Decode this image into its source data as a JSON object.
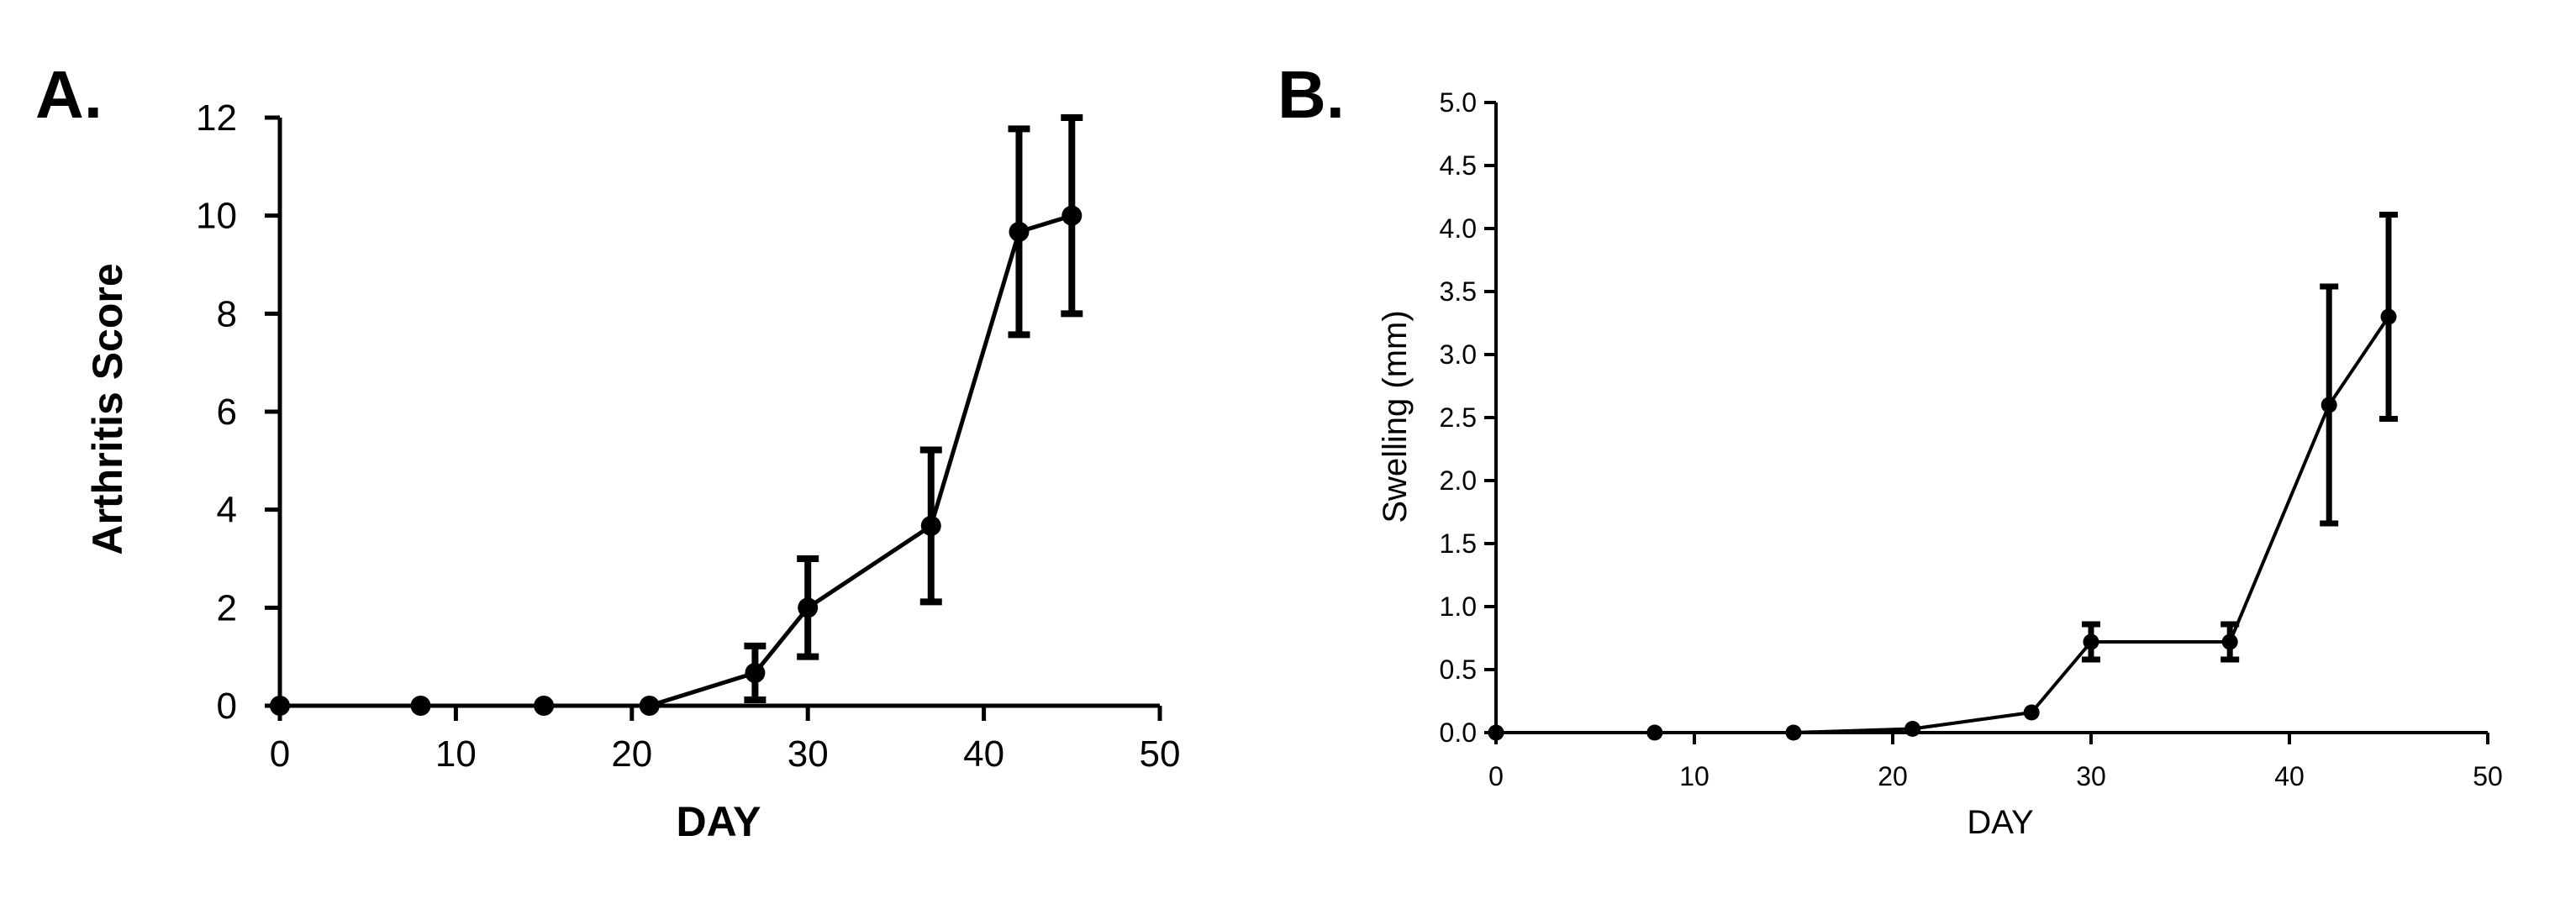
{
  "chart_data": [
    {
      "type": "line",
      "panel_label": "A.",
      "xlabel": "DAY",
      "ylabel": "Arthritis Score",
      "xlim": [
        0,
        50
      ],
      "ylim": [
        0,
        12
      ],
      "xticks": [
        "0",
        "10",
        "20",
        "30",
        "40",
        "50"
      ],
      "yticks": [
        "0",
        "2",
        "4",
        "6",
        "8",
        "10",
        "12"
      ],
      "grid": false,
      "series": [
        {
          "x": [
            0,
            8,
            15,
            21,
            27,
            30,
            37,
            42,
            45
          ],
          "y": [
            0,
            0,
            0,
            0,
            0.67,
            2.0,
            3.67,
            9.67,
            10.0
          ],
          "error": [
            0,
            0,
            0,
            0,
            0.55,
            1.0,
            1.55,
            2.1,
            2.0
          ]
        }
      ]
    },
    {
      "type": "line",
      "panel_label": "B.",
      "xlabel": "DAY",
      "ylabel": "Swelling (mm)",
      "xlim": [
        0,
        50
      ],
      "ylim": [
        0,
        5.0
      ],
      "xticks": [
        "0",
        "10",
        "20",
        "30",
        "40",
        "50"
      ],
      "yticks": [
        "0.0",
        "0.5",
        "1.0",
        "1.5",
        "2.0",
        "2.5",
        "3.0",
        "3.5",
        "4.0",
        "4.5",
        "5.0"
      ],
      "grid": false,
      "series": [
        {
          "x": [
            0,
            8,
            15,
            21,
            27,
            30,
            37,
            42,
            45
          ],
          "y": [
            0,
            0,
            0,
            0.03,
            0.16,
            0.72,
            0.72,
            2.6,
            3.3
          ],
          "error": [
            0,
            0,
            0,
            0,
            0,
            0.14,
            0.14,
            0.94,
            0.81
          ]
        }
      ]
    }
  ]
}
